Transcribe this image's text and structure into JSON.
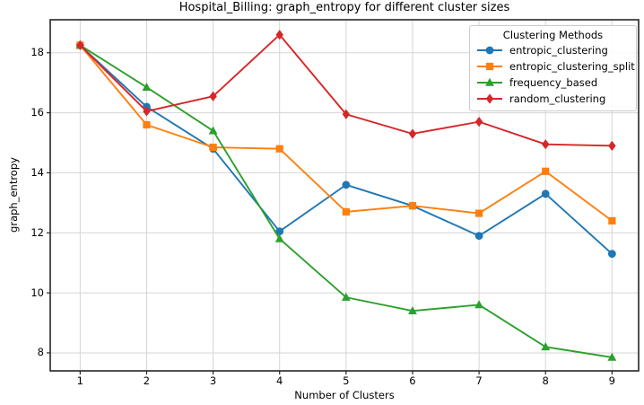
{
  "chart_data": {
    "type": "line",
    "title": "Hospital_Billing: graph_entropy for different cluster sizes",
    "xlabel": "Number of Clusters",
    "ylabel": "graph_entropy",
    "x": [
      1,
      2,
      3,
      4,
      5,
      6,
      7,
      8,
      9
    ],
    "xticks": [
      1,
      2,
      3,
      4,
      5,
      6,
      7,
      8,
      9
    ],
    "yticks": [
      8,
      10,
      12,
      14,
      16,
      18
    ],
    "xlim": [
      0.55,
      9.4
    ],
    "ylim": [
      7.4,
      19.1
    ],
    "grid": true,
    "grid_color": "#d5d5d5",
    "legend": {
      "title": "Clustering Methods",
      "position": "upper right"
    },
    "series": [
      {
        "name": "entropic_clustering",
        "color": "#1f77b4",
        "marker": "circle",
        "values": [
          18.25,
          16.2,
          14.8,
          12.05,
          13.6,
          12.9,
          11.9,
          13.3,
          11.3
        ]
      },
      {
        "name": "entropic_clustering_split",
        "color": "#ff7f0e",
        "marker": "square",
        "values": [
          18.25,
          15.6,
          14.85,
          14.8,
          12.7,
          12.9,
          12.65,
          14.05,
          12.4
        ]
      },
      {
        "name": "frequency_based",
        "color": "#2ca02c",
        "marker": "triangle",
        "values": [
          18.25,
          16.85,
          15.4,
          11.8,
          9.85,
          9.4,
          9.6,
          8.2,
          7.85
        ]
      },
      {
        "name": "random_clustering",
        "color": "#d62728",
        "marker": "diamond",
        "values": [
          18.25,
          16.05,
          16.55,
          18.6,
          15.95,
          15.3,
          15.7,
          14.95,
          14.9
        ]
      }
    ]
  }
}
